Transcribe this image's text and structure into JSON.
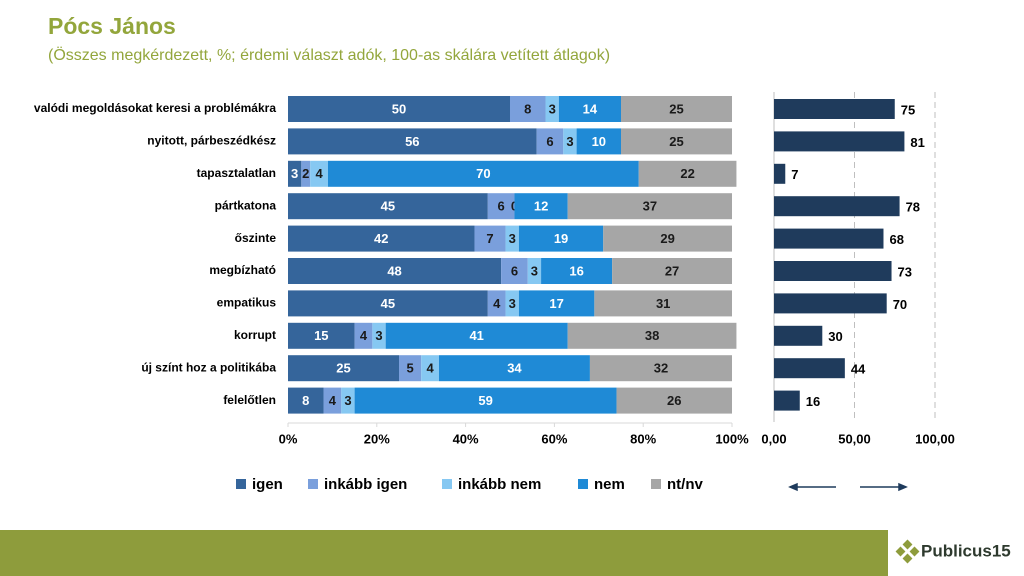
{
  "chart_data": [
    {
      "type": "stacked-bar",
      "title": "Pócs János",
      "subtitle": "(Összes megkérdezett, %; érdemi választ adók, 100-as skálára vetített átlagok)",
      "categories": [
        "valódi megoldásokat keresi a problémákra",
        "nyitott, párbeszédkész",
        "tapasztalatlan",
        "pártkatona",
        "őszinte",
        "megbízható",
        "empatikus",
        "korrupt",
        "új színt hoz a politikába",
        "felelőtlen"
      ],
      "series": [
        {
          "name": "igen",
          "color": "#35659b",
          "values": [
            50,
            56,
            3,
            45,
            42,
            48,
            45,
            15,
            25,
            8
          ]
        },
        {
          "name": "inkább igen",
          "color": "#7a9fdc",
          "values": [
            8,
            6,
            2,
            6,
            7,
            6,
            4,
            4,
            5,
            4
          ]
        },
        {
          "name": "inkább nem",
          "color": "#86c8f2",
          "values": [
            3,
            3,
            4,
            0,
            3,
            3,
            3,
            3,
            4,
            3
          ]
        },
        {
          "name": "nem",
          "color": "#1f8ad6",
          "values": [
            14,
            10,
            70,
            12,
            19,
            16,
            17,
            41,
            34,
            59
          ]
        },
        {
          "name": "nt/nv",
          "color": "#a6a6a6",
          "values": [
            25,
            25,
            22,
            37,
            29,
            27,
            31,
            38,
            32,
            26
          ]
        }
      ],
      "xlim": [
        0,
        100
      ],
      "xticks": [
        {
          "value": 0,
          "label": "0%"
        },
        {
          "value": 20,
          "label": "20%"
        },
        {
          "value": 40,
          "label": "40%"
        },
        {
          "value": 60,
          "label": "60%"
        },
        {
          "value": 80,
          "label": "80%"
        },
        {
          "value": 100,
          "label": "100%"
        }
      ],
      "legend": "bottom"
    },
    {
      "type": "bar",
      "color": "#1f3b5c",
      "values": [
        75,
        81,
        7,
        78,
        68,
        73,
        70,
        30,
        44,
        16
      ],
      "xlim": [
        0,
        100
      ],
      "xticks": [
        {
          "value": 0,
          "label": "0,00"
        },
        {
          "value": 50,
          "label": "50,00"
        },
        {
          "value": 100,
          "label": "100,00"
        }
      ],
      "grid": true
    }
  ],
  "footer": {
    "logo": "Publicus15"
  }
}
